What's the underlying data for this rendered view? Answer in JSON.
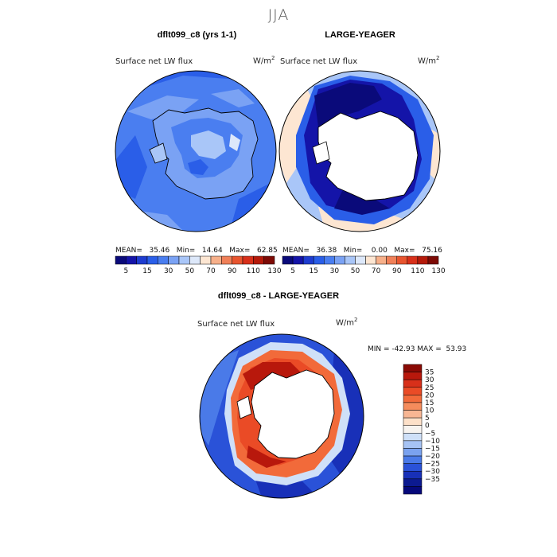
{
  "figure": {
    "season": "JJA"
  },
  "panels": {
    "left": {
      "title": "dflt099_c8 (yrs 1-1)",
      "variable": "Surface net LW flux",
      "units_base": "W/m",
      "units_exp": "2",
      "stats": "MEAN=   35.46   Min=   14.64   Max=   62.85"
    },
    "right": {
      "title": "LARGE-YEAGER",
      "variable": "Surface net LW flux",
      "units_base": "W/m",
      "units_exp": "2",
      "stats": "MEAN=   36.38   Min=    0.00   Max=   75.16"
    },
    "diff": {
      "title": "dflt099_c8 - LARGE-YEAGER",
      "variable": "Surface net LW flux",
      "units_base": "W/m",
      "units_exp": "2",
      "stats": "MIN = -42.93 MAX =  53.93"
    }
  },
  "colorbar_abs": {
    "labels": [
      "5",
      "15",
      "30",
      "50",
      "70",
      "90",
      "110",
      "130"
    ],
    "colors": [
      "#0a0a7a",
      "#1414a8",
      "#1e3cd0",
      "#2a5ee8",
      "#4a7ef0",
      "#7aa2f4",
      "#a9c6f8",
      "#dde8fa",
      "#fde6d2",
      "#f7b08a",
      "#f08058",
      "#e8552f",
      "#d8301a",
      "#b51a0a",
      "#7d0a05"
    ]
  },
  "colorbar_diff": {
    "labels": [
      "35",
      "30",
      "25",
      "20",
      "15",
      "10",
      "5",
      "0",
      "−5",
      "−10",
      "−15",
      "−20",
      "−25",
      "−30",
      "−35"
    ],
    "colors": [
      "#8a0a05",
      "#b8180c",
      "#d8301a",
      "#ea4b26",
      "#f26a3a",
      "#f58c5c",
      "#f8b693",
      "#fde0c8",
      "#f7f3ef",
      "#cfe0f8",
      "#a6c3f4",
      "#7aa2ef",
      "#4a7ae8",
      "#2a52d8",
      "#1830b8",
      "#0c1a90",
      "#06097a"
    ]
  },
  "colors": {
    "land": "#ffffff",
    "coast": "#000000"
  }
}
